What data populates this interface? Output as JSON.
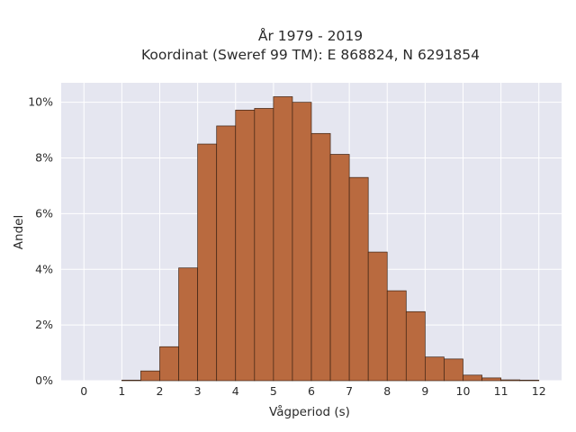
{
  "chart_data": {
    "type": "bar",
    "title_lines": [
      "År 1979 - 2019",
      "Koordinat (Sweref 99 TM): E 868824, N 6291854"
    ],
    "xlabel": "Vågperiod (s)",
    "ylabel": "Andel",
    "x_ticks": [
      "0",
      "1",
      "2",
      "3",
      "4",
      "5",
      "6",
      "7",
      "8",
      "9",
      "10",
      "11",
      "12"
    ],
    "y_ticks": [
      "0%",
      "2%",
      "4%",
      "6%",
      "8%",
      "10%"
    ],
    "xlim": [
      -0.6,
      12.6
    ],
    "ylim": [
      0,
      10.7
    ],
    "bin_width": 0.5,
    "bins": [
      {
        "start": 1.0,
        "value": 0.02
      },
      {
        "start": 1.5,
        "value": 0.35
      },
      {
        "start": 2.0,
        "value": 1.22
      },
      {
        "start": 2.5,
        "value": 4.05
      },
      {
        "start": 3.0,
        "value": 8.5
      },
      {
        "start": 3.5,
        "value": 9.15
      },
      {
        "start": 4.0,
        "value": 9.72
      },
      {
        "start": 4.5,
        "value": 9.78
      },
      {
        "start": 5.0,
        "value": 10.2
      },
      {
        "start": 5.5,
        "value": 10.0
      },
      {
        "start": 6.0,
        "value": 8.88
      },
      {
        "start": 6.5,
        "value": 8.13
      },
      {
        "start": 7.0,
        "value": 7.3
      },
      {
        "start": 7.5,
        "value": 4.62
      },
      {
        "start": 8.0,
        "value": 3.23
      },
      {
        "start": 8.5,
        "value": 2.48
      },
      {
        "start": 9.0,
        "value": 0.85
      },
      {
        "start": 9.5,
        "value": 0.78
      },
      {
        "start": 10.0,
        "value": 0.2
      },
      {
        "start": 10.5,
        "value": 0.1
      },
      {
        "start": 11.0,
        "value": 0.03
      },
      {
        "start": 11.5,
        "value": 0.02
      }
    ],
    "grid": true,
    "colors": {
      "bar_fill": "#b96a3f",
      "bar_stroke": "#3d2314",
      "plot_bg": "#e5e6f0",
      "grid": "#ffffff"
    }
  }
}
